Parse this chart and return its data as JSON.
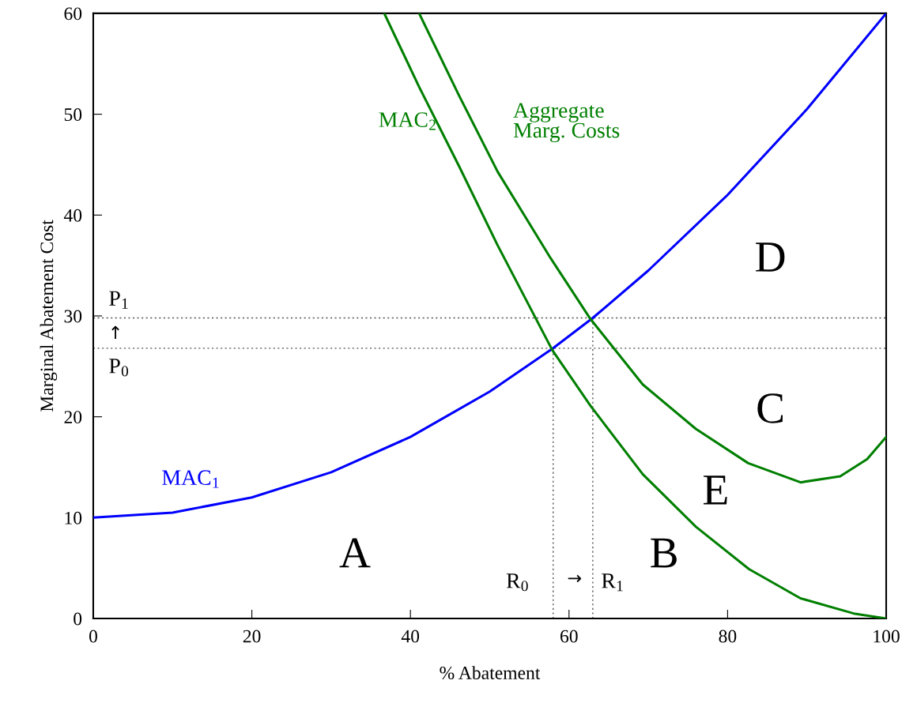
{
  "chart_data": {
    "type": "line",
    "xlabel": "% Abatement",
    "ylabel": "Marginal Abatement Cost",
    "xlim": [
      0,
      100
    ],
    "ylim": [
      0,
      60
    ],
    "xticks": [
      0,
      20,
      40,
      60,
      80,
      100
    ],
    "yticks": [
      0,
      10,
      20,
      30,
      40,
      50,
      60
    ],
    "grid": false,
    "legend": false,
    "marker": "none",
    "line_style": "solid",
    "series": [
      {
        "name": "MAC$_{1}$",
        "color": "#0000ff",
        "x": [
          0,
          10,
          20,
          30,
          40,
          50,
          58,
          63,
          70,
          80,
          90,
          100
        ],
        "values": [
          10,
          10.5,
          12,
          14.5,
          18,
          22.5,
          26.8,
          29.8,
          34.5,
          42,
          50.5,
          60
        ]
      },
      {
        "name": "MAC$_{2}$",
        "color": "#007f00",
        "x": [
          36.7,
          41.1,
          46.1,
          51.0,
          57.9,
          62.7,
          69.3,
          76.0,
          82.7,
          89.2,
          95.9,
          100
        ],
        "values": [
          60,
          52.7,
          44.9,
          37.0,
          26.6,
          21.1,
          14.3,
          9.1,
          4.9,
          2.0,
          0.5,
          0
        ]
      },
      {
        "name": "Aggregate\nMarg. Costs",
        "color": "#007f00",
        "x": [
          41.1,
          46.1,
          51.0,
          57.7,
          62.7,
          69.3,
          76.0,
          82.6,
          89.2,
          94.2,
          97.6,
          100
        ],
        "values": [
          60,
          51.9,
          44.3,
          35.7,
          29.7,
          23.2,
          18.8,
          15.4,
          13.5,
          14.1,
          15.8,
          18.0
        ]
      },
      {
        "color": "#555555",
        "line_style": "dotted",
        "x": [
          58,
          58
        ],
        "values": [
          0,
          26.8
        ]
      },
      {
        "color": "#555555",
        "line_style": "dotted",
        "x": [
          63,
          63
        ],
        "values": [
          0,
          29.8
        ]
      }
    ],
    "ref_lines": [
      {
        "axis": "y",
        "value": 29.8,
        "label": "P$_{1}$",
        "color": "#555555",
        "line_style": "dotted"
      },
      {
        "axis": "y",
        "value": 26.8,
        "label": "P$_{0}$",
        "color": "#555555",
        "line_style": "dotted"
      }
    ],
    "annotations": [
      "A",
      "B",
      "C",
      "D",
      "E",
      "R$_{0}$",
      "R$_{1}$",
      "→",
      "↑"
    ]
  }
}
